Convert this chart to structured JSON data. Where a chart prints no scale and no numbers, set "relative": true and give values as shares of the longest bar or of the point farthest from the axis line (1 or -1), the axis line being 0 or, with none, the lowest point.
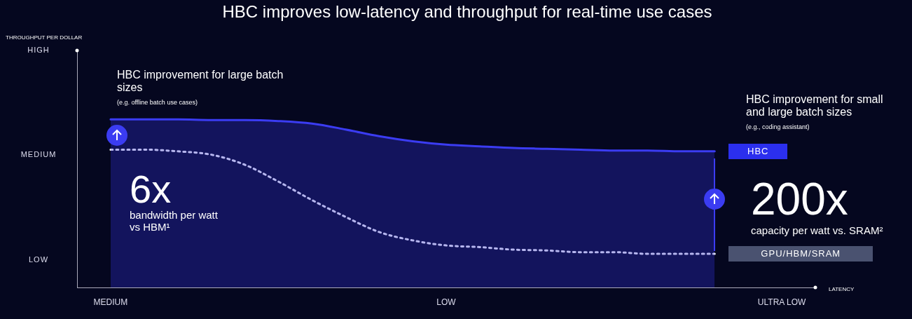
{
  "chart_data": {
    "type": "line",
    "title": "HBC improves low-latency and throughput for real-time use cases",
    "xlabel": "LATENCY",
    "relative": true,
    "categories": [
      null,
      "MEDIUM",
      null,
      null,
      null,
      null,
      null,
      null,
      null,
      null,
      null,
      "LOW",
      null,
      null,
      null,
      null,
      null,
      null,
      null,
      null,
      null,
      "ULTRA LOW",
      null
    ],
    "grid": false,
    "legend": false,
    "marker": "none",
    "series": [
      {
        "name": "HBC",
        "color": "#3b3cf2",
        "line_style": "solid",
        "values": [
          null,
          1,
          1,
          1,
          0.996,
          0.996,
          0.99,
          0.975,
          0.94,
          0.9,
          0.87,
          0.85,
          0.84,
          0.83,
          0.825,
          0.82,
          0.815,
          0.815,
          0.81,
          0.81,
          null,
          null,
          null
        ]
      },
      {
        "name": "GPU/HBM/SRAM",
        "color": "#ffffff",
        "line_style": "dotted",
        "values": [
          null,
          0.82,
          0.82,
          0.81,
          0.79,
          0.73,
          0.63,
          0.52,
          0.42,
          0.33,
          0.28,
          0.25,
          0.24,
          0.225,
          0.22,
          0.21,
          0.21,
          0.2,
          0.2,
          0.2,
          null,
          null,
          null
        ]
      }
    ],
    "annotations": [
      "HBC improvement for large batch sizes",
      "(e.g. offline batch use cases)",
      "HBC improvement for small and large batch sizes",
      "(e.g., coding assistant)",
      "6x",
      "bandwidth per watt vs HBM¹",
      "200x",
      "capacity per watt vs. SRAM²",
      "HIGH",
      "MEDIUM",
      "LOW",
      "THROUGHPUT PER DOLLAR"
    ]
  }
}
